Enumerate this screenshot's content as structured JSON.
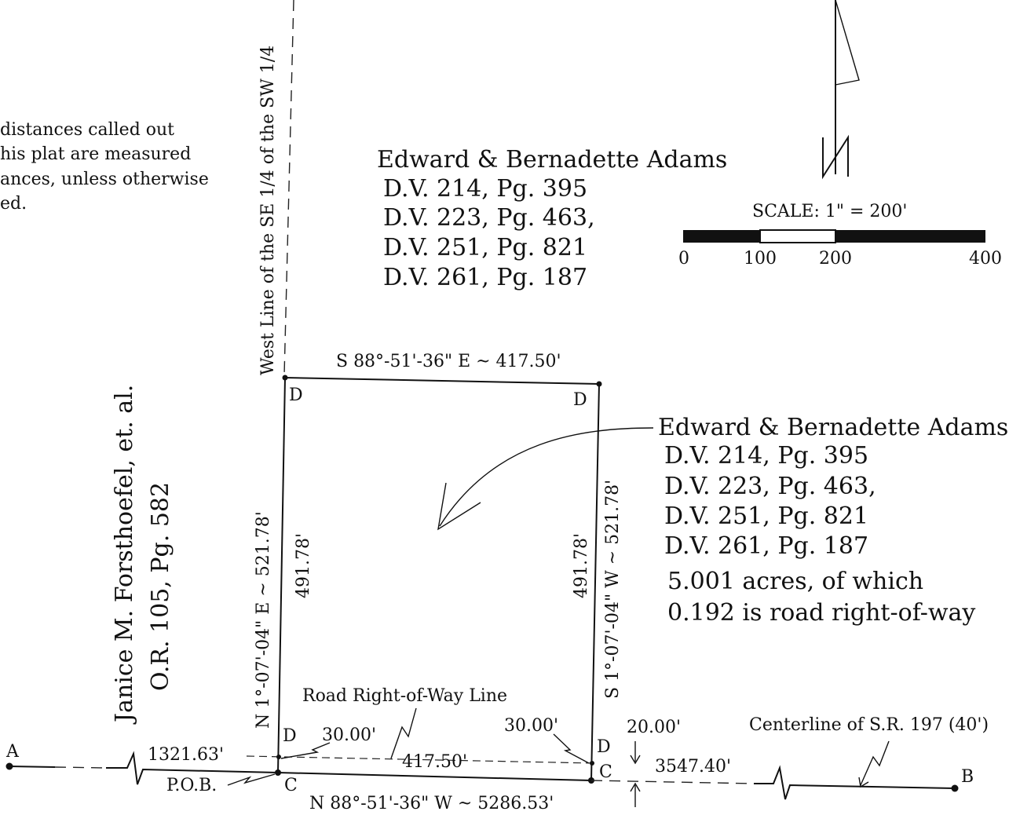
{
  "note": {
    "lines": [
      "distances called out",
      "his plat are measured",
      "ances, unless otherwise",
      "ed."
    ]
  },
  "north_adjacent": {
    "owner": "Edward & Bernadette Adams",
    "deeds": [
      "D.V. 214, Pg. 395",
      "D.V. 223, Pg. 463,",
      "D.V. 251, Pg. 821",
      "D.V. 261, Pg. 187"
    ]
  },
  "parcel": {
    "owner": "Edward & Bernadette Adams",
    "deeds": [
      "D.V. 214, Pg. 395",
      "D.V. 223, Pg. 463,",
      "D.V. 251, Pg. 821",
      "D.V. 261, Pg. 187"
    ],
    "acreage": "5.001 acres, of which",
    "row_note": "0.192 is road right-of-way"
  },
  "west_adjacent": {
    "owner": "Janice M. Forsthoefel, et. al.",
    "deed": "O.R. 105, Pg. 582"
  },
  "scale": {
    "label": "SCALE: 1\" = 200'",
    "ticks": [
      "0",
      "100",
      "200",
      "400"
    ]
  },
  "north_arrow": {
    "letter": "N"
  },
  "lines": {
    "west_line": "West Line of the SE 1/4 of the SW 1/4",
    "north_bearing": "S 88°-51'-36\" E ~ 417.50'",
    "west_bearing": "N 1°-07'-04\" E ~ 521.78'",
    "west_inner": "491.78'",
    "east_bearing": "S 1°-07'-04\" W ~ 521.78'",
    "east_inner": "491.78'",
    "south_bearing": "N 88°-51'-36\" W ~ 5286.53'",
    "row_line_label": "Road Right-of-Way Line",
    "row_length": "417.50'",
    "offset_west": "30.00'",
    "offset_east": "30.00'",
    "half_width": "20.00'",
    "dist_west": "1321.63'",
    "dist_east": "3547.40'",
    "centerline_label": "Centerline of S.R. 197 (40')"
  },
  "points": {
    "a": "A",
    "b": "B",
    "pob": "P.O.B.",
    "d_nw": "D",
    "d_ne": "D",
    "d_sw": "D",
    "d_se": "D",
    "c_sw": "C",
    "c_se": "C"
  }
}
